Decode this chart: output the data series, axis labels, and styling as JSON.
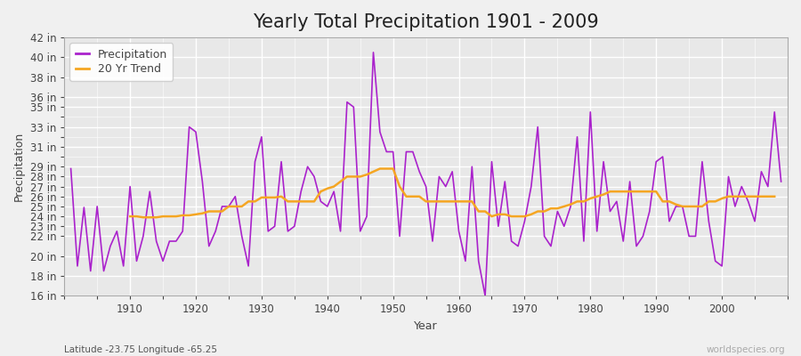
{
  "title": "Yearly Total Precipitation 1901 - 2009",
  "xlabel": "Year",
  "ylabel": "Precipitation",
  "subtitle": "Latitude -23.75 Longitude -65.25",
  "watermark": "worldspecies.org",
  "years": [
    1901,
    1902,
    1903,
    1904,
    1905,
    1906,
    1907,
    1908,
    1909,
    1910,
    1911,
    1912,
    1913,
    1914,
    1915,
    1916,
    1917,
    1918,
    1919,
    1920,
    1921,
    1922,
    1923,
    1924,
    1925,
    1926,
    1927,
    1928,
    1929,
    1930,
    1931,
    1932,
    1933,
    1934,
    1935,
    1936,
    1937,
    1938,
    1939,
    1940,
    1941,
    1942,
    1943,
    1944,
    1945,
    1946,
    1947,
    1948,
    1949,
    1950,
    1951,
    1952,
    1953,
    1954,
    1955,
    1956,
    1957,
    1958,
    1959,
    1960,
    1961,
    1962,
    1963,
    1964,
    1965,
    1966,
    1967,
    1968,
    1969,
    1970,
    1971,
    1972,
    1973,
    1974,
    1975,
    1976,
    1977,
    1978,
    1979,
    1980,
    1981,
    1982,
    1983,
    1984,
    1985,
    1986,
    1987,
    1988,
    1989,
    1990,
    1991,
    1992,
    1993,
    1994,
    1995,
    1996,
    1997,
    1998,
    1999,
    2000,
    2001,
    2002,
    2003,
    2004,
    2005,
    2006,
    2007,
    2008,
    2009
  ],
  "precip": [
    28.8,
    19.0,
    24.9,
    18.5,
    25.0,
    18.5,
    21.0,
    22.5,
    19.0,
    27.0,
    19.5,
    22.0,
    26.5,
    21.5,
    19.5,
    21.5,
    21.5,
    22.5,
    33.0,
    32.5,
    27.5,
    21.0,
    22.5,
    25.0,
    25.0,
    26.0,
    22.0,
    19.0,
    29.5,
    32.0,
    22.5,
    23.0,
    29.5,
    22.5,
    23.0,
    26.5,
    29.0,
    28.0,
    25.5,
    25.0,
    26.5,
    22.5,
    35.5,
    35.0,
    22.5,
    24.0,
    40.5,
    32.5,
    30.5,
    30.5,
    22.0,
    30.5,
    30.5,
    28.5,
    27.0,
    21.5,
    28.0,
    27.0,
    28.5,
    22.5,
    19.5,
    29.0,
    19.5,
    16.0,
    29.5,
    23.0,
    27.5,
    21.5,
    21.0,
    23.5,
    27.0,
    33.0,
    22.0,
    21.0,
    24.5,
    23.0,
    25.0,
    32.0,
    21.5,
    34.5,
    22.5,
    29.5,
    24.5,
    25.5,
    21.5,
    27.5,
    21.0,
    22.0,
    24.5,
    29.5,
    30.0,
    23.5,
    25.0,
    25.0,
    22.0,
    22.0,
    29.5,
    23.5,
    19.5,
    19.0,
    28.0,
    25.0,
    27.0,
    25.5,
    23.5,
    28.5,
    27.0,
    34.5,
    27.5
  ],
  "trend": [
    null,
    null,
    null,
    null,
    null,
    null,
    null,
    null,
    null,
    24.0,
    24.0,
    23.9,
    23.9,
    23.9,
    24.0,
    24.0,
    24.0,
    24.1,
    24.1,
    24.2,
    24.3,
    24.5,
    24.5,
    24.5,
    25.0,
    25.0,
    25.0,
    25.5,
    25.5,
    25.9,
    25.9,
    25.9,
    26.0,
    25.5,
    25.5,
    25.5,
    25.5,
    25.5,
    26.5,
    26.8,
    27.0,
    27.5,
    28.0,
    28.0,
    28.0,
    28.2,
    28.5,
    28.8,
    28.8,
    28.8,
    27.0,
    26.0,
    26.0,
    26.0,
    25.5,
    25.5,
    25.5,
    25.5,
    25.5,
    25.5,
    25.5,
    25.5,
    24.5,
    24.5,
    24.0,
    24.2,
    24.2,
    24.0,
    24.0,
    24.0,
    24.2,
    24.5,
    24.5,
    24.8,
    24.8,
    25.0,
    25.2,
    25.5,
    25.5,
    25.8,
    26.0,
    26.2,
    26.5,
    26.5,
    26.5,
    26.5,
    26.5,
    26.5,
    26.5,
    26.5,
    25.5,
    25.5,
    25.2,
    25.0,
    25.0,
    25.0,
    25.0,
    25.5,
    25.5,
    25.8,
    26.0,
    26.0,
    26.0,
    26.0,
    26.0,
    26.0,
    26.0,
    26.0
  ],
  "precip_color": "#aa22cc",
  "trend_color": "#f5a623",
  "bg_color": "#f0f0f0",
  "plot_bg": "#e8e8e8",
  "ylim": [
    16,
    42
  ],
  "yticks": [
    16,
    18,
    20,
    22,
    23,
    24,
    25,
    26,
    27,
    28,
    29,
    31,
    33,
    35,
    36,
    38,
    40,
    42
  ],
  "ytick_labels": [
    "16 in",
    "18 in",
    "20 in",
    "22 in",
    "23 in",
    "24 in",
    "25 in",
    "26 in",
    "27 in",
    "28 in",
    "29 in",
    "31 in",
    "33 in",
    "35 in",
    "36 in",
    "38 in",
    "40 in",
    "42 in"
  ],
  "xticks": [
    1910,
    1920,
    1930,
    1940,
    1950,
    1960,
    1970,
    1980,
    1990,
    2000
  ],
  "title_fontsize": 15,
  "label_fontsize": 9,
  "tick_fontsize": 8.5
}
